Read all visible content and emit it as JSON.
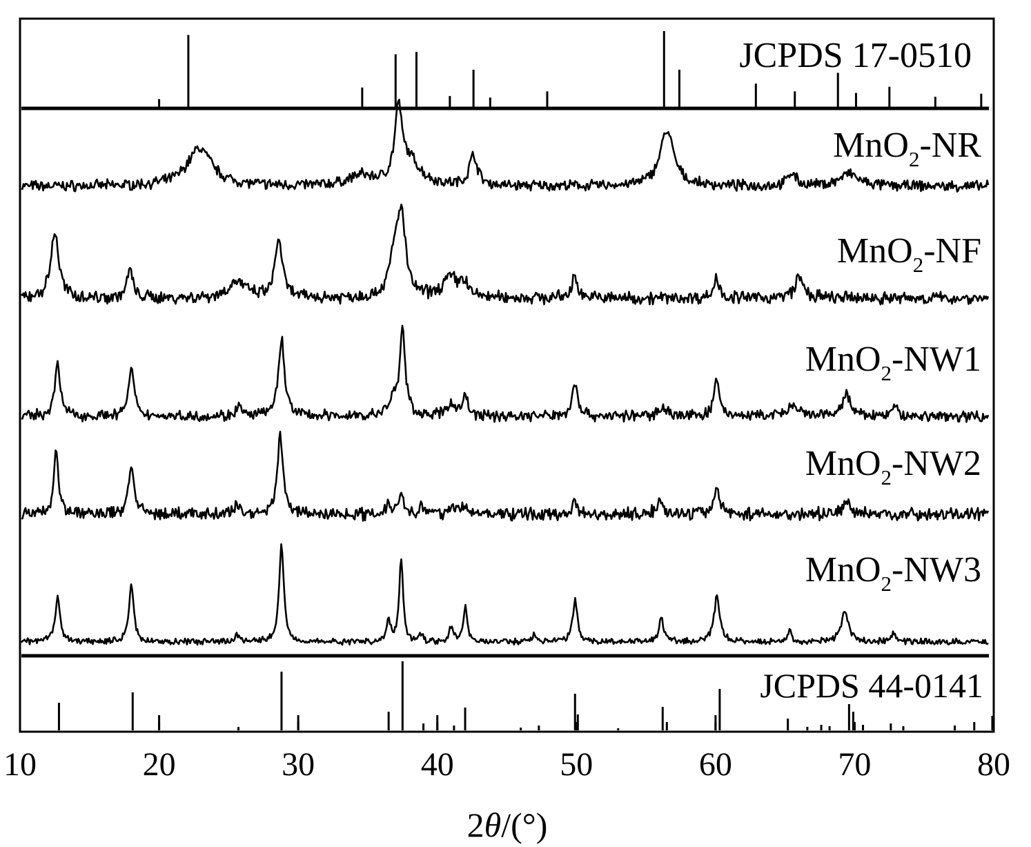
{
  "chart_data": {
    "type": "line",
    "title": "",
    "xlabel": {
      "prefix": "2",
      "italic": "θ",
      "suffix": "/(°)"
    },
    "ylabel": "",
    "xlim": [
      10,
      80
    ],
    "xticks": [
      10,
      20,
      30,
      40,
      50,
      60,
      70,
      80
    ],
    "grid": false,
    "legend": "none",
    "line_color": "#000000",
    "reference_top": {
      "label": "JCPDS 17-0510",
      "sticks": [
        {
          "x": 20.0,
          "h": 0.12
        },
        {
          "x": 22.1,
          "h": 0.95
        },
        {
          "x": 34.6,
          "h": 0.27
        },
        {
          "x": 37.0,
          "h": 0.7
        },
        {
          "x": 38.5,
          "h": 0.73
        },
        {
          "x": 40.9,
          "h": 0.16
        },
        {
          "x": 42.6,
          "h": 0.5
        },
        {
          "x": 43.8,
          "h": 0.14
        },
        {
          "x": 47.9,
          "h": 0.22
        },
        {
          "x": 56.3,
          "h": 1.0
        },
        {
          "x": 57.4,
          "h": 0.5
        },
        {
          "x": 62.9,
          "h": 0.32
        },
        {
          "x": 65.7,
          "h": 0.22
        },
        {
          "x": 68.8,
          "h": 0.46
        },
        {
          "x": 70.1,
          "h": 0.2
        },
        {
          "x": 72.5,
          "h": 0.28
        },
        {
          "x": 75.8,
          "h": 0.15
        },
        {
          "x": 79.1,
          "h": 0.19
        }
      ]
    },
    "series": [
      {
        "name": "MnO",
        "sub": "2",
        "suffix": "-NR",
        "noise": 0.06,
        "peaks": [
          {
            "x": 22.9,
            "h": 0.55,
            "w": 1.6
          },
          {
            "x": 34.5,
            "h": 0.14,
            "w": 1.5
          },
          {
            "x": 37.2,
            "h": 1.0,
            "w": 0.45
          },
          {
            "x": 38.0,
            "h": 0.35,
            "w": 1.4
          },
          {
            "x": 42.6,
            "h": 0.45,
            "w": 0.5
          },
          {
            "x": 56.5,
            "h": 0.8,
            "w": 0.9
          },
          {
            "x": 65.5,
            "h": 0.2,
            "w": 0.5
          },
          {
            "x": 69.6,
            "h": 0.18,
            "w": 1.2
          }
        ]
      },
      {
        "name": "MnO",
        "sub": "2",
        "suffix": "-NF",
        "noise": 0.06,
        "peaks": [
          {
            "x": 12.5,
            "h": 0.8,
            "w": 0.5
          },
          {
            "x": 17.9,
            "h": 0.35,
            "w": 0.35
          },
          {
            "x": 25.6,
            "h": 0.2,
            "w": 1.1
          },
          {
            "x": 28.6,
            "h": 0.72,
            "w": 0.45
          },
          {
            "x": 37.4,
            "h": 0.95,
            "w": 0.55
          },
          {
            "x": 36.9,
            "h": 0.4,
            "w": 0.6
          },
          {
            "x": 40.9,
            "h": 0.24,
            "w": 0.9
          },
          {
            "x": 41.9,
            "h": 0.18,
            "w": 0.5
          },
          {
            "x": 49.9,
            "h": 0.25,
            "w": 0.4
          },
          {
            "x": 60.1,
            "h": 0.25,
            "w": 0.35
          },
          {
            "x": 66.0,
            "h": 0.25,
            "w": 0.55
          }
        ]
      },
      {
        "name": "MnO",
        "sub": "2",
        "suffix": "-NW1",
        "noise": 0.05,
        "peaks": [
          {
            "x": 12.7,
            "h": 0.6,
            "w": 0.35
          },
          {
            "x": 18.0,
            "h": 0.55,
            "w": 0.35
          },
          {
            "x": 25.7,
            "h": 0.12,
            "w": 0.3
          },
          {
            "x": 28.8,
            "h": 0.88,
            "w": 0.4
          },
          {
            "x": 37.5,
            "h": 1.0,
            "w": 0.35
          },
          {
            "x": 36.8,
            "h": 0.2,
            "w": 0.4
          },
          {
            "x": 41.0,
            "h": 0.15,
            "w": 0.5
          },
          {
            "x": 42.0,
            "h": 0.25,
            "w": 0.3
          },
          {
            "x": 49.9,
            "h": 0.4,
            "w": 0.35
          },
          {
            "x": 56.2,
            "h": 0.12,
            "w": 0.5
          },
          {
            "x": 60.1,
            "h": 0.42,
            "w": 0.35
          },
          {
            "x": 65.5,
            "h": 0.1,
            "w": 0.8
          },
          {
            "x": 69.4,
            "h": 0.25,
            "w": 0.5
          },
          {
            "x": 72.9,
            "h": 0.12,
            "w": 0.3
          }
        ]
      },
      {
        "name": "MnO",
        "sub": "2",
        "suffix": "-NW2",
        "noise": 0.06,
        "peaks": [
          {
            "x": 12.6,
            "h": 0.8,
            "w": 0.3
          },
          {
            "x": 18.0,
            "h": 0.62,
            "w": 0.35
          },
          {
            "x": 25.6,
            "h": 0.12,
            "w": 0.35
          },
          {
            "x": 28.7,
            "h": 1.0,
            "w": 0.35
          },
          {
            "x": 36.5,
            "h": 0.15,
            "w": 0.3
          },
          {
            "x": 37.4,
            "h": 0.28,
            "w": 0.3
          },
          {
            "x": 38.8,
            "h": 0.1,
            "w": 0.3
          },
          {
            "x": 41.0,
            "h": 0.1,
            "w": 0.4
          },
          {
            "x": 42.0,
            "h": 0.12,
            "w": 0.3
          },
          {
            "x": 49.9,
            "h": 0.18,
            "w": 0.3
          },
          {
            "x": 56.0,
            "h": 0.2,
            "w": 0.35
          },
          {
            "x": 60.1,
            "h": 0.32,
            "w": 0.4
          },
          {
            "x": 69.4,
            "h": 0.15,
            "w": 0.5
          }
        ]
      },
      {
        "name": "MnO",
        "sub": "2",
        "suffix": "-NW3",
        "noise": 0.025,
        "peaks": [
          {
            "x": 12.7,
            "h": 0.48,
            "w": 0.3
          },
          {
            "x": 18.0,
            "h": 0.6,
            "w": 0.3
          },
          {
            "x": 25.6,
            "h": 0.08,
            "w": 0.3
          },
          {
            "x": 28.8,
            "h": 1.0,
            "w": 0.3
          },
          {
            "x": 36.5,
            "h": 0.22,
            "w": 0.25
          },
          {
            "x": 37.4,
            "h": 0.85,
            "w": 0.25
          },
          {
            "x": 38.8,
            "h": 0.08,
            "w": 0.25
          },
          {
            "x": 41.0,
            "h": 0.16,
            "w": 0.25
          },
          {
            "x": 42.0,
            "h": 0.36,
            "w": 0.25
          },
          {
            "x": 47.0,
            "h": 0.08,
            "w": 0.3
          },
          {
            "x": 49.9,
            "h": 0.44,
            "w": 0.3
          },
          {
            "x": 56.1,
            "h": 0.25,
            "w": 0.3
          },
          {
            "x": 60.1,
            "h": 0.48,
            "w": 0.35
          },
          {
            "x": 65.3,
            "h": 0.12,
            "w": 0.25
          },
          {
            "x": 69.3,
            "h": 0.32,
            "w": 0.45
          },
          {
            "x": 72.8,
            "h": 0.08,
            "w": 0.4
          }
        ]
      }
    ],
    "reference_bottom": {
      "label": "JCPDS 44-0141",
      "sticks": [
        {
          "x": 12.8,
          "h": 0.4
        },
        {
          "x": 18.1,
          "h": 0.55
        },
        {
          "x": 20.0,
          "h": 0.22
        },
        {
          "x": 25.7,
          "h": 0.05
        },
        {
          "x": 28.8,
          "h": 0.85
        },
        {
          "x": 30.0,
          "h": 0.22
        },
        {
          "x": 36.5,
          "h": 0.27
        },
        {
          "x": 37.5,
          "h": 1.0
        },
        {
          "x": 39.0,
          "h": 0.1
        },
        {
          "x": 40.0,
          "h": 0.22
        },
        {
          "x": 41.2,
          "h": 0.07
        },
        {
          "x": 42.0,
          "h": 0.33
        },
        {
          "x": 46.0,
          "h": 0.04
        },
        {
          "x": 47.3,
          "h": 0.07
        },
        {
          "x": 49.9,
          "h": 0.53
        },
        {
          "x": 50.1,
          "h": 0.23
        },
        {
          "x": 53.0,
          "h": 0.03
        },
        {
          "x": 56.2,
          "h": 0.34
        },
        {
          "x": 56.5,
          "h": 0.12
        },
        {
          "x": 60.0,
          "h": 0.22
        },
        {
          "x": 60.3,
          "h": 0.6
        },
        {
          "x": 65.2,
          "h": 0.17
        },
        {
          "x": 66.6,
          "h": 0.05
        },
        {
          "x": 67.6,
          "h": 0.08
        },
        {
          "x": 68.2,
          "h": 0.06
        },
        {
          "x": 69.6,
          "h": 0.38
        },
        {
          "x": 69.9,
          "h": 0.27
        },
        {
          "x": 70.6,
          "h": 0.08
        },
        {
          "x": 72.6,
          "h": 0.1
        },
        {
          "x": 73.5,
          "h": 0.06
        },
        {
          "x": 77.2,
          "h": 0.07
        },
        {
          "x": 78.6,
          "h": 0.12
        },
        {
          "x": 79.9,
          "h": 0.21
        }
      ]
    }
  }
}
